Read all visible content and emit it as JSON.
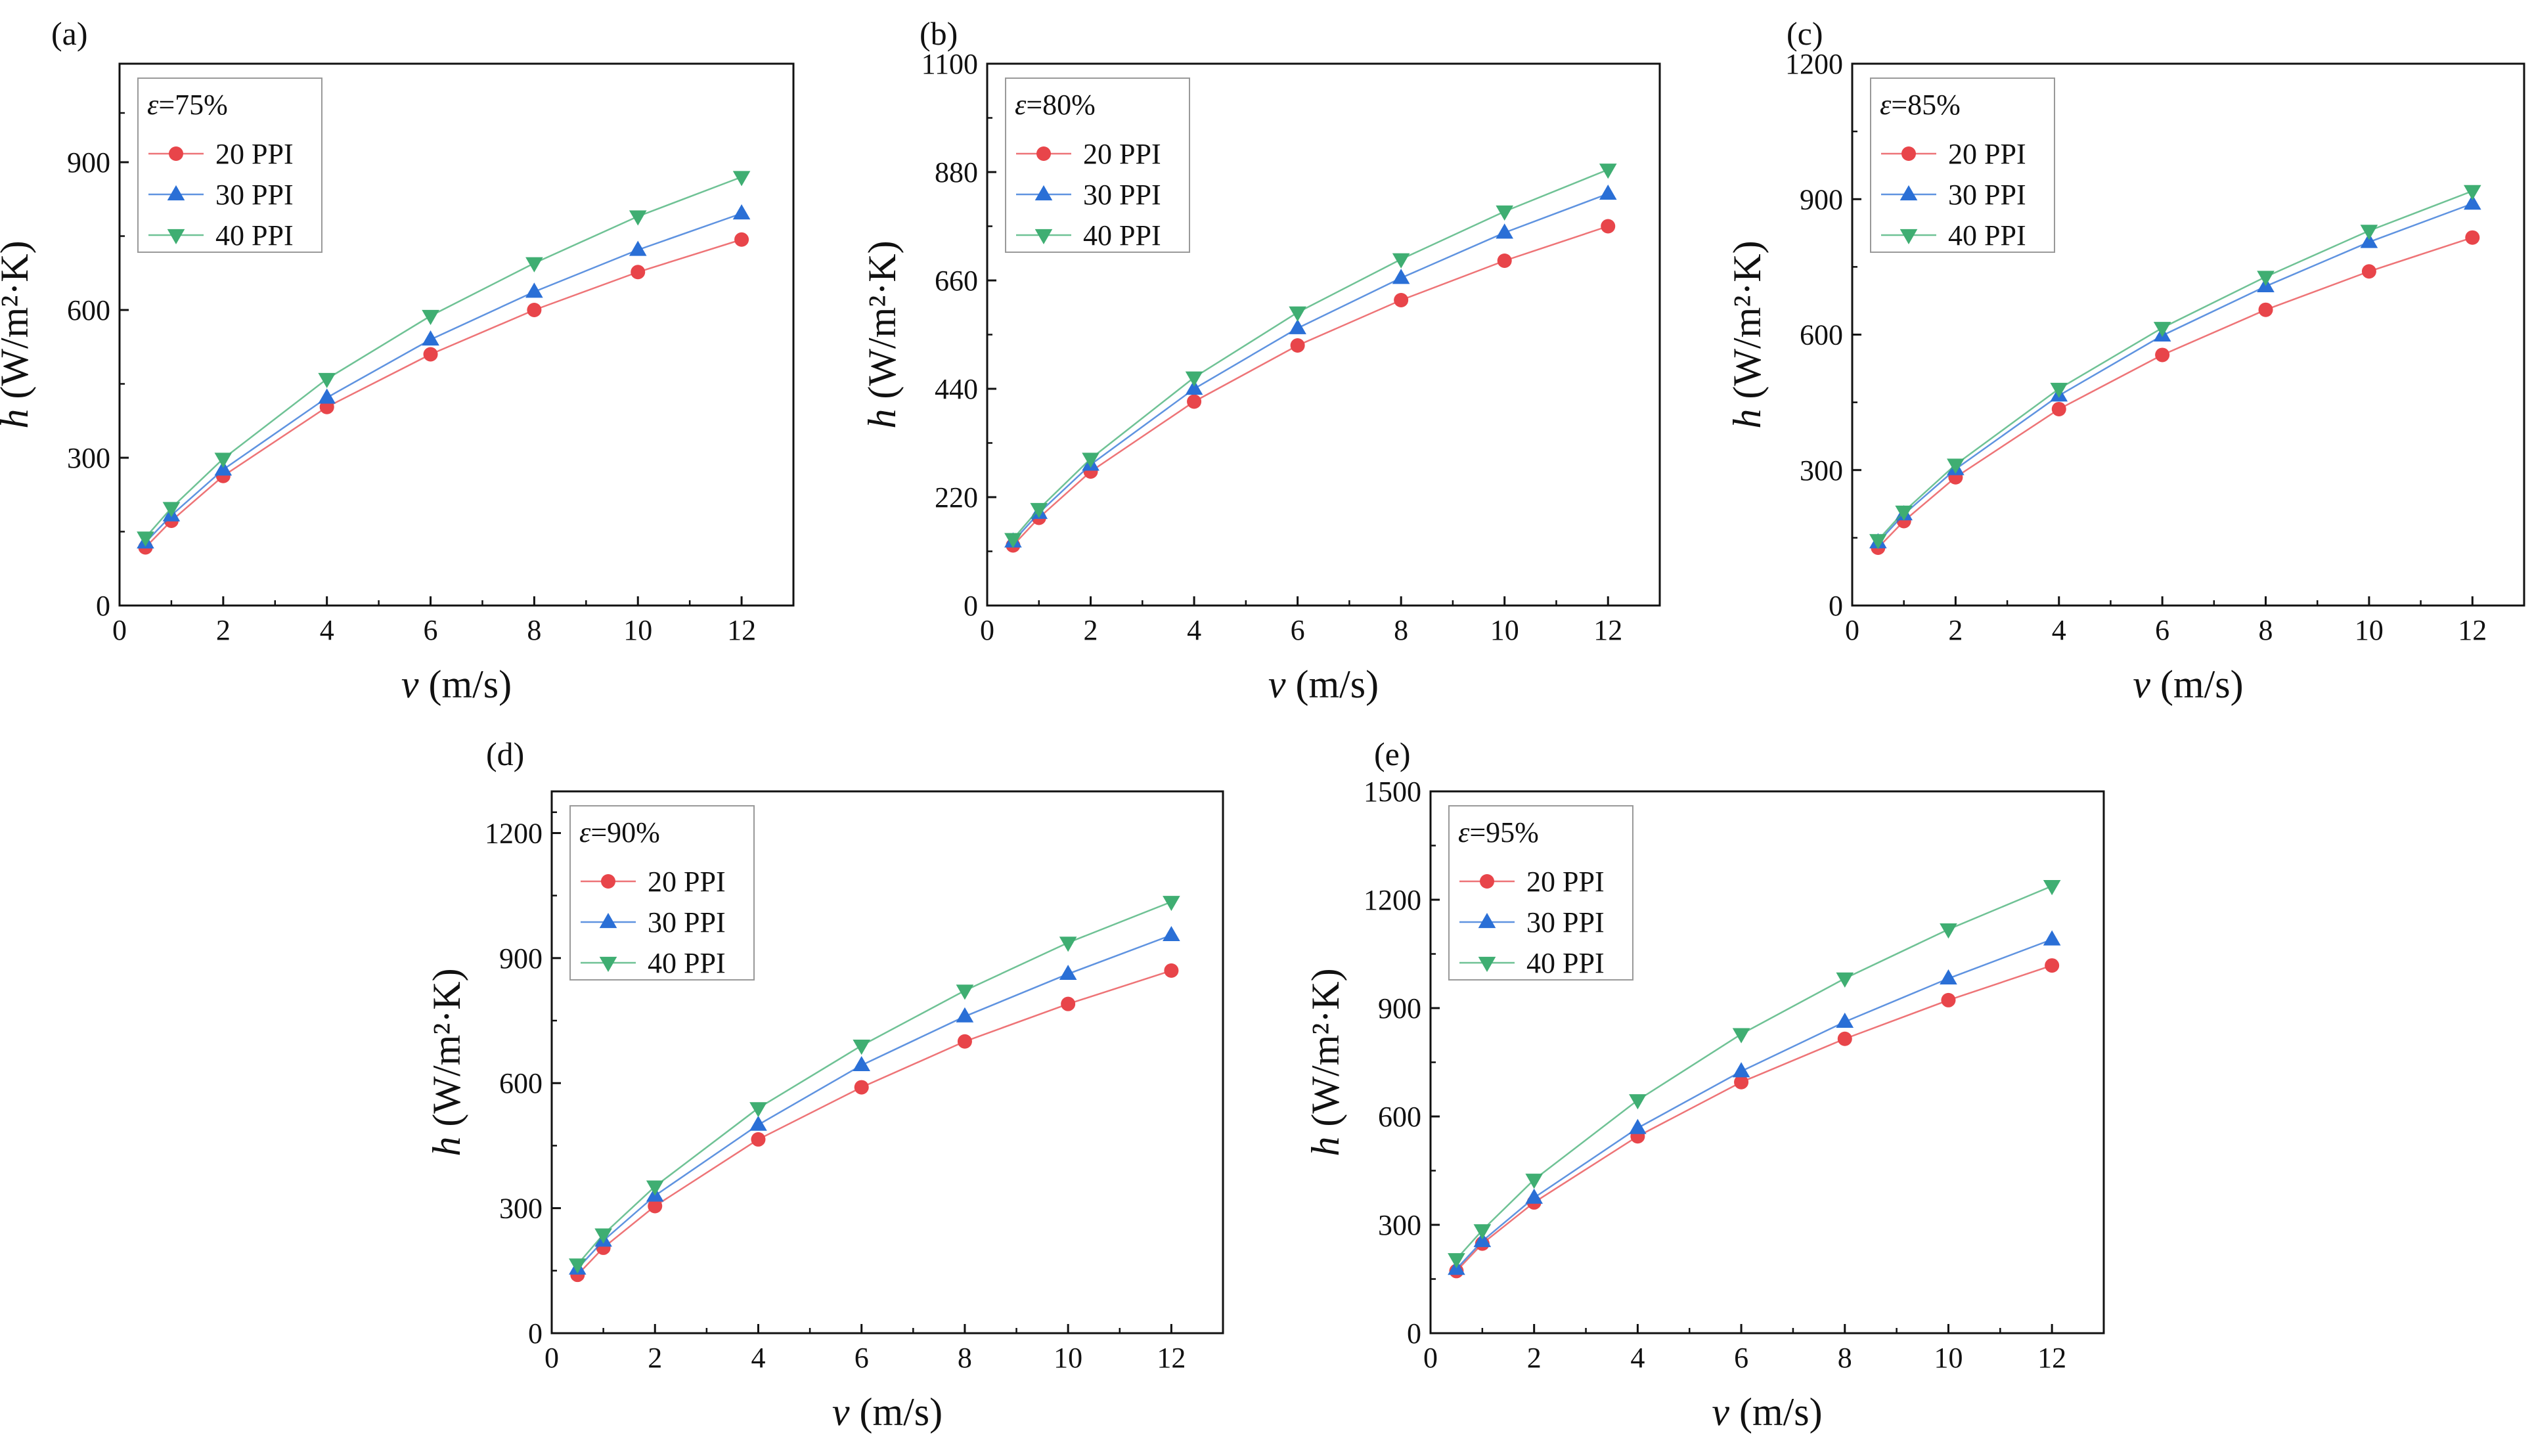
{
  "figure": {
    "background": "#ffffff"
  },
  "series_colors": {
    "20 PPI": "#e8454a",
    "30 PPI": "#2a6fd6",
    "40 PPI": "#3fae72"
  },
  "chart_data": [
    {
      "type": "line",
      "panel": "(a)",
      "epsilon": "ε",
      "legend_title": "=75%",
      "xlabel_var": "v",
      "xlabel_unit": " (m/s)",
      "ylabel_var": "h",
      "ylabel_unit": " (W/m²·K)",
      "xlim": [
        0,
        13
      ],
      "ylim": [
        0,
        1100
      ],
      "xticks": [
        0,
        2,
        4,
        6,
        8,
        10,
        12
      ],
      "yticks": [
        0,
        300,
        600,
        900
      ],
      "x": [
        0.5,
        1,
        2,
        4,
        6,
        8,
        10,
        12
      ],
      "series": [
        {
          "name": "20 PPI",
          "marker": "circle",
          "values": [
            118,
            172,
            263,
            403,
            510,
            600,
            677,
            743
          ]
        },
        {
          "name": "30 PPI",
          "marker": "triangle-up",
          "values": [
            128,
            183,
            276,
            422,
            540,
            637,
            722,
            796
          ]
        },
        {
          "name": "40 PPI",
          "marker": "triangle-down",
          "values": [
            138,
            198,
            298,
            460,
            588,
            695,
            790,
            870
          ]
        }
      ]
    },
    {
      "type": "line",
      "panel": "(b)",
      "epsilon": "ε",
      "legend_title": "=80%",
      "xlabel_var": "v",
      "xlabel_unit": " (m/s)",
      "ylabel_var": "h",
      "ylabel_unit": " (W/m²·K)",
      "xlim": [
        0,
        13
      ],
      "ylim": [
        0,
        1100
      ],
      "xticks": [
        0,
        2,
        4,
        6,
        8,
        10,
        12
      ],
      "yticks": [
        0,
        220,
        440,
        660,
        880,
        1100
      ],
      "x": [
        0.5,
        1,
        2,
        4,
        6,
        8,
        10,
        12
      ],
      "series": [
        {
          "name": "20 PPI",
          "marker": "circle",
          "values": [
            122,
            178,
            272,
            414,
            528,
            620,
            700,
            770
          ]
        },
        {
          "name": "30 PPI",
          "marker": "triangle-up",
          "values": [
            130,
            188,
            286,
            440,
            563,
            665,
            757,
            836
          ]
        },
        {
          "name": "40 PPI",
          "marker": "triangle-down",
          "values": [
            135,
            196,
            298,
            463,
            595,
            703,
            800,
            885
          ]
        }
      ]
    },
    {
      "type": "line",
      "panel": "(c)",
      "epsilon": "ε",
      "legend_title": "=85%",
      "xlabel_var": "v",
      "xlabel_unit": " (m/s)",
      "ylabel_var": "h",
      "ylabel_unit": " (W/m²·K)",
      "xlim": [
        0,
        13
      ],
      "ylim": [
        0,
        1200
      ],
      "xticks": [
        0,
        2,
        4,
        6,
        8,
        10,
        12
      ],
      "yticks": [
        0,
        300,
        600,
        900,
        1200
      ],
      "x": [
        0.5,
        1,
        2,
        4,
        6,
        8,
        10,
        12
      ],
      "series": [
        {
          "name": "20 PPI",
          "marker": "circle",
          "values": [
            128,
            187,
            284,
            435,
            555,
            655,
            740,
            815
          ]
        },
        {
          "name": "30 PPI",
          "marker": "triangle-up",
          "values": [
            140,
            202,
            302,
            465,
            598,
            707,
            805,
            890
          ]
        },
        {
          "name": "40 PPI",
          "marker": "triangle-down",
          "values": [
            145,
            208,
            312,
            480,
            615,
            728,
            830,
            918
          ]
        }
      ]
    },
    {
      "type": "line",
      "panel": "(d)",
      "epsilon": "ε",
      "legend_title": "=90%",
      "xlabel_var": "v",
      "xlabel_unit": " (m/s)",
      "ylabel_var": "h",
      "ylabel_unit": " (W/m²·K)",
      "xlim": [
        0,
        13
      ],
      "ylim": [
        0,
        1300
      ],
      "xticks": [
        0,
        2,
        4,
        6,
        8,
        10,
        12
      ],
      "yticks": [
        0,
        300,
        600,
        900,
        1200
      ],
      "x": [
        0.5,
        1,
        2,
        4,
        6,
        8,
        10,
        12
      ],
      "series": [
        {
          "name": "20 PPI",
          "marker": "circle",
          "values": [
            140,
            205,
            305,
            465,
            590,
            700,
            790,
            870
          ]
        },
        {
          "name": "30 PPI",
          "marker": "triangle-up",
          "values": [
            155,
            222,
            330,
            500,
            643,
            760,
            862,
            955
          ]
        },
        {
          "name": "40 PPI",
          "marker": "triangle-down",
          "values": [
            165,
            237,
            352,
            540,
            690,
            822,
            937,
            1035
          ]
        }
      ]
    },
    {
      "type": "line",
      "panel": "(e)",
      "epsilon": "ε",
      "legend_title": "=95%",
      "xlabel_var": "v",
      "xlabel_unit": " (m/s)",
      "ylabel_var": "h",
      "ylabel_unit": " (W/m²·K)",
      "xlim": [
        0,
        13
      ],
      "ylim": [
        0,
        1500
      ],
      "xticks": [
        0,
        2,
        4,
        6,
        8,
        10,
        12
      ],
      "yticks": [
        0,
        300,
        600,
        900,
        1200,
        1500
      ],
      "x": [
        0.5,
        1,
        2,
        4,
        6,
        8,
        10,
        12
      ],
      "series": [
        {
          "name": "20 PPI",
          "marker": "circle",
          "values": [
            172,
            248,
            362,
            545,
            695,
            815,
            922,
            1018
          ]
        },
        {
          "name": "30 PPI",
          "marker": "triangle-up",
          "values": [
            178,
            255,
            375,
            568,
            725,
            862,
            982,
            1090
          ]
        },
        {
          "name": "40 PPI",
          "marker": "triangle-down",
          "values": [
            205,
            285,
            425,
            645,
            828,
            982,
            1118,
            1238
          ]
        }
      ]
    }
  ]
}
